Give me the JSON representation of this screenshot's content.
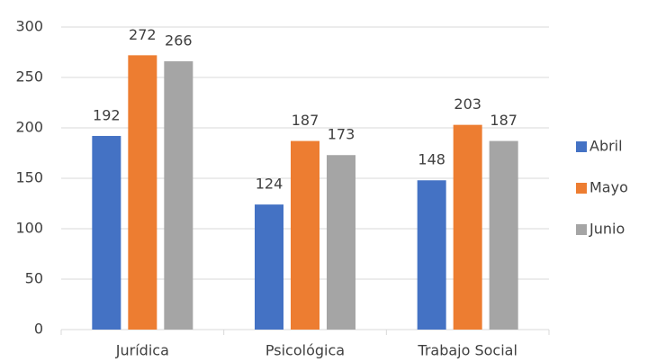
{
  "chart_data": {
    "type": "bar",
    "categories": [
      "Jurídica",
      "Psicológica",
      "Trabajo Social"
    ],
    "series": [
      {
        "name": "Abril",
        "color": "#4472c4",
        "values": [
          192,
          124,
          148
        ]
      },
      {
        "name": "Mayo",
        "color": "#ed7d31",
        "values": [
          272,
          187,
          203
        ]
      },
      {
        "name": "Junio",
        "color": "#a5a5a5",
        "values": [
          266,
          173,
          187
        ]
      }
    ],
    "ylim": [
      0,
      300
    ],
    "yticks": [
      0,
      50,
      100,
      150,
      200,
      250,
      300
    ],
    "grid": true,
    "legend": "right"
  }
}
